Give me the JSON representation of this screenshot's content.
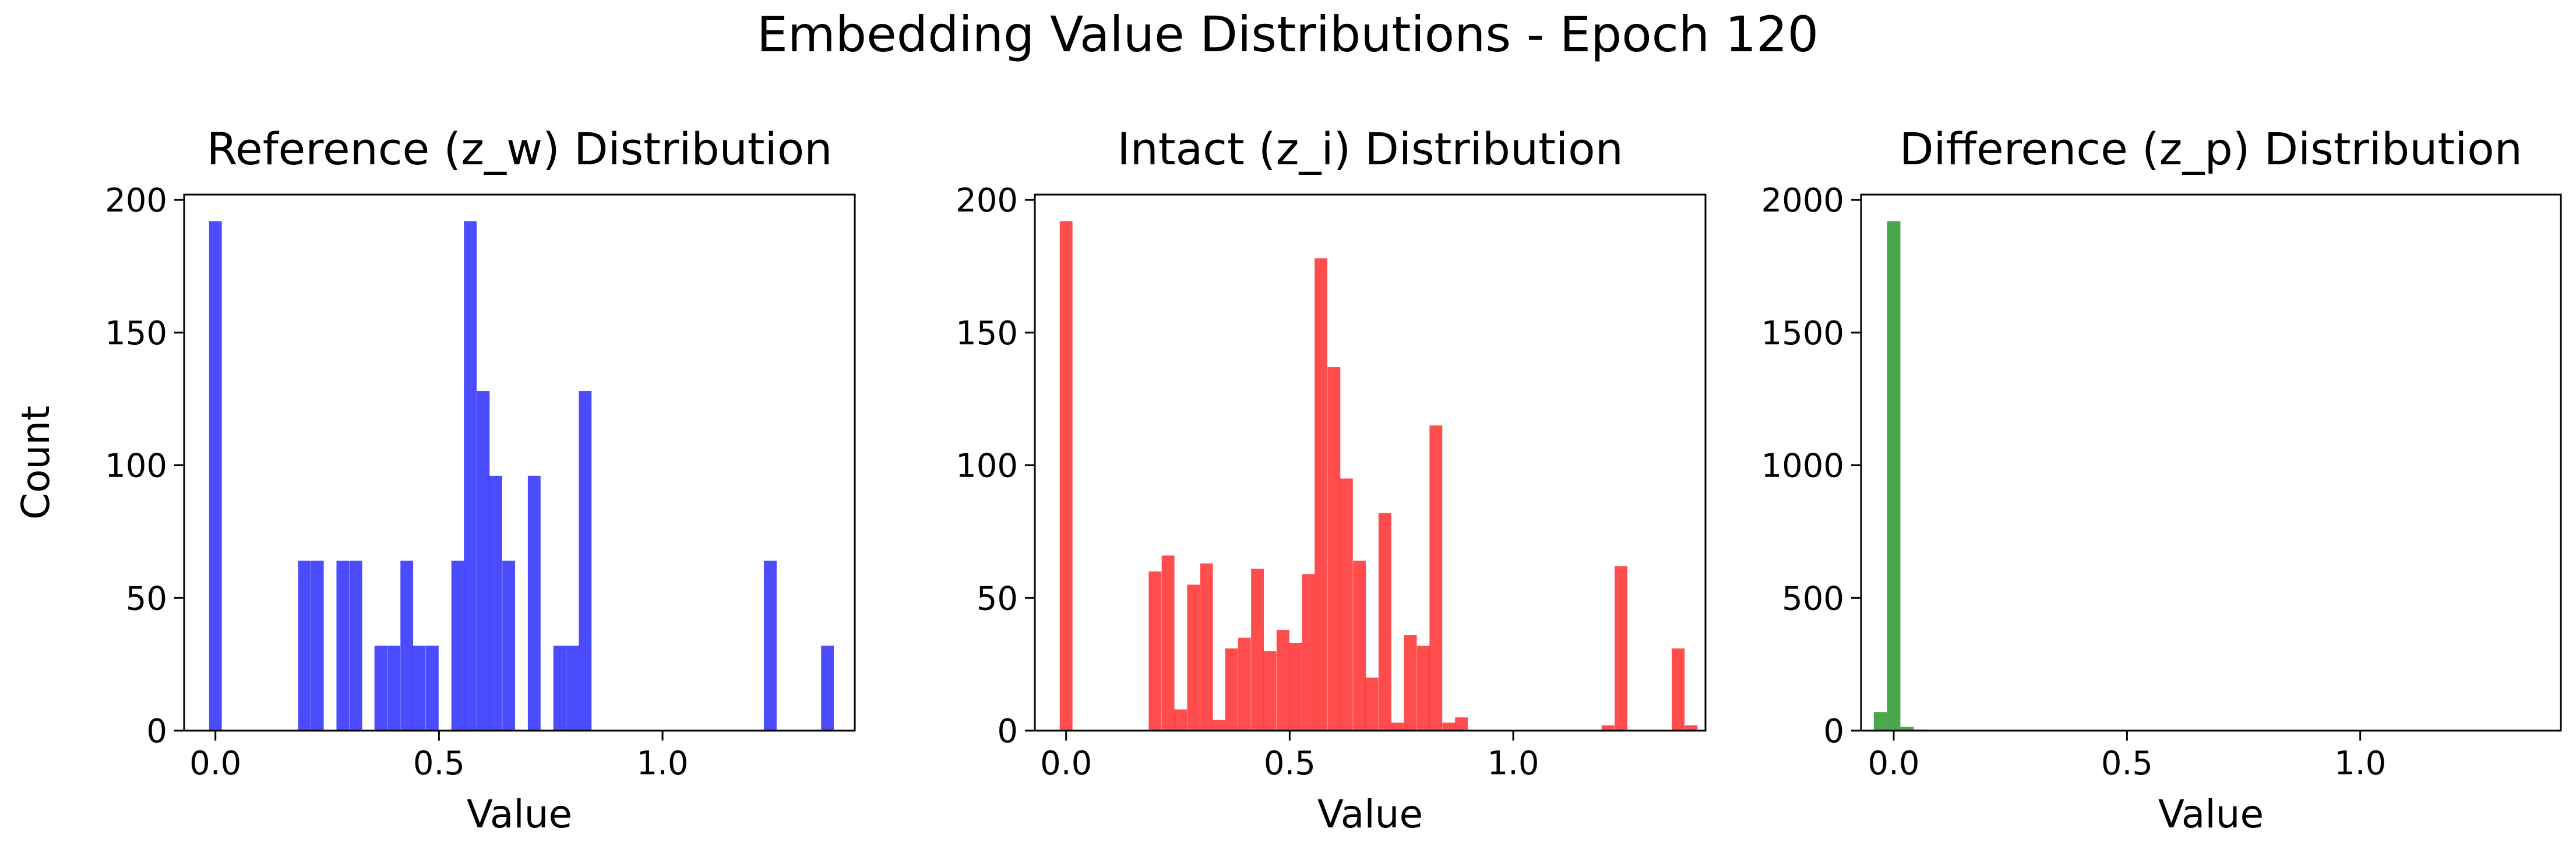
{
  "figure": {
    "suptitle": "Embedding Value Distributions - Epoch 120"
  },
  "chart_data": [
    {
      "type": "bar",
      "title": "Reference (z_w) Distribution",
      "xlabel": "Value",
      "ylabel": "Count",
      "xlim": [
        -0.07,
        1.43
      ],
      "ylim": [
        0,
        202
      ],
      "xticks": [
        0.0,
        0.5,
        1.0
      ],
      "xtick_labels": [
        "0.0",
        "0.5",
        "1.0"
      ],
      "yticks": [
        0,
        50,
        100,
        150,
        200
      ],
      "ytick_labels": [
        "0",
        "50",
        "100",
        "150",
        "200"
      ],
      "bin_width": 0.0285,
      "color": "#0000ff",
      "opacity": 0.7,
      "bins": [
        {
          "x": 0.0,
          "count": 192
        },
        {
          "x": 0.199,
          "count": 64
        },
        {
          "x": 0.228,
          "count": 64
        },
        {
          "x": 0.285,
          "count": 64
        },
        {
          "x": 0.314,
          "count": 64
        },
        {
          "x": 0.37,
          "count": 32
        },
        {
          "x": 0.399,
          "count": 32
        },
        {
          "x": 0.428,
          "count": 64
        },
        {
          "x": 0.456,
          "count": 32
        },
        {
          "x": 0.485,
          "count": 32
        },
        {
          "x": 0.542,
          "count": 64
        },
        {
          "x": 0.57,
          "count": 192
        },
        {
          "x": 0.599,
          "count": 128
        },
        {
          "x": 0.627,
          "count": 96
        },
        {
          "x": 0.656,
          "count": 64
        },
        {
          "x": 0.713,
          "count": 96
        },
        {
          "x": 0.77,
          "count": 32
        },
        {
          "x": 0.799,
          "count": 32
        },
        {
          "x": 0.827,
          "count": 128
        },
        {
          "x": 1.241,
          "count": 64
        },
        {
          "x": 1.369,
          "count": 32
        }
      ]
    },
    {
      "type": "bar",
      "title": "Intact (z_i) Distribution",
      "xlabel": "Value",
      "ylabel": "",
      "xlim": [
        -0.07,
        1.43
      ],
      "ylim": [
        0,
        202
      ],
      "xticks": [
        0.0,
        0.5,
        1.0
      ],
      "xtick_labels": [
        "0.0",
        "0.5",
        "1.0"
      ],
      "yticks": [
        0,
        50,
        100,
        150,
        200
      ],
      "ytick_labels": [
        "0",
        "50",
        "100",
        "150",
        "200"
      ],
      "bin_width": 0.0285,
      "color": "#ff0000",
      "opacity": 0.7,
      "bins": [
        {
          "x": 0.0,
          "count": 192
        },
        {
          "x": 0.199,
          "count": 60
        },
        {
          "x": 0.228,
          "count": 66
        },
        {
          "x": 0.256,
          "count": 8
        },
        {
          "x": 0.285,
          "count": 55
        },
        {
          "x": 0.314,
          "count": 63
        },
        {
          "x": 0.342,
          "count": 4
        },
        {
          "x": 0.37,
          "count": 31
        },
        {
          "x": 0.399,
          "count": 35
        },
        {
          "x": 0.428,
          "count": 61
        },
        {
          "x": 0.456,
          "count": 30
        },
        {
          "x": 0.485,
          "count": 38
        },
        {
          "x": 0.513,
          "count": 33
        },
        {
          "x": 0.542,
          "count": 59
        },
        {
          "x": 0.57,
          "count": 178
        },
        {
          "x": 0.599,
          "count": 137
        },
        {
          "x": 0.627,
          "count": 95
        },
        {
          "x": 0.656,
          "count": 64
        },
        {
          "x": 0.684,
          "count": 20
        },
        {
          "x": 0.713,
          "count": 82
        },
        {
          "x": 0.741,
          "count": 3
        },
        {
          "x": 0.77,
          "count": 36
        },
        {
          "x": 0.799,
          "count": 32
        },
        {
          "x": 0.827,
          "count": 115
        },
        {
          "x": 0.856,
          "count": 3
        },
        {
          "x": 0.884,
          "count": 5
        },
        {
          "x": 1.212,
          "count": 2
        },
        {
          "x": 1.241,
          "count": 62
        },
        {
          "x": 1.369,
          "count": 31
        },
        {
          "x": 1.398,
          "count": 2
        }
      ]
    },
    {
      "type": "bar",
      "title": "Difference (z_p) Distribution",
      "xlabel": "Value",
      "ylabel": "",
      "xlim": [
        -0.07,
        1.43
      ],
      "ylim": [
        0,
        2020
      ],
      "xticks": [
        0.0,
        0.5,
        1.0
      ],
      "xtick_labels": [
        "0.0",
        "0.5",
        "1.0"
      ],
      "yticks": [
        0,
        500,
        1000,
        1500,
        2000
      ],
      "ytick_labels": [
        "0",
        "500",
        "1000",
        "1500",
        "2000"
      ],
      "bin_width": 0.0285,
      "color": "#008000",
      "opacity": 0.7,
      "bins": [
        {
          "x": -0.0285,
          "count": 70
        },
        {
          "x": 0.0,
          "count": 1920
        },
        {
          "x": 0.0285,
          "count": 14
        },
        {
          "x": 0.057,
          "count": 4
        },
        {
          "x": 0.0855,
          "count": 1
        }
      ]
    }
  ]
}
